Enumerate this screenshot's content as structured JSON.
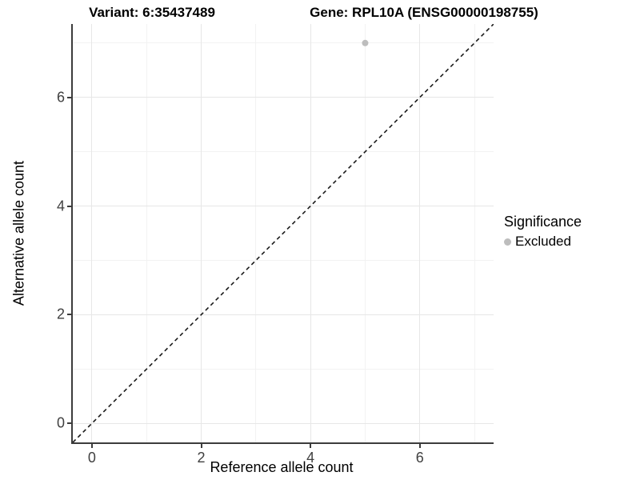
{
  "titles": {
    "left": "Variant: 6:35437489",
    "right": "Gene: RPL10A (ENSG00000198755)"
  },
  "chart_data": {
    "type": "scatter",
    "xlabel": "Reference allele count",
    "ylabel": "Alternative allele count",
    "xlim": [
      -0.35,
      7.35
    ],
    "ylim": [
      -0.35,
      7.35
    ],
    "x_breaks": [
      0,
      2,
      4,
      6
    ],
    "y_breaks": [
      0,
      2,
      4,
      6
    ],
    "x_minor_breaks": [
      1,
      3,
      5,
      7
    ],
    "y_minor_breaks": [
      1,
      3,
      5,
      7
    ],
    "grid": true,
    "points": [
      {
        "x": 5,
        "y": 7,
        "significance": "Excluded"
      }
    ],
    "reference_line": {
      "slope": 1,
      "intercept": 0,
      "style": "dashed",
      "color": "#1a1a1a"
    },
    "legend": {
      "title": "Significance",
      "position": "right",
      "entries": [
        {
          "label": "Excluded",
          "color": "#bdbdbd"
        }
      ]
    }
  },
  "colors": {
    "point": "#bdbdbd",
    "grid_major": "#e7e7e7",
    "grid_minor": "#f2f2f2",
    "axis_line": "#3c3c3c",
    "tick_label": "#404040",
    "title": "#000000"
  }
}
